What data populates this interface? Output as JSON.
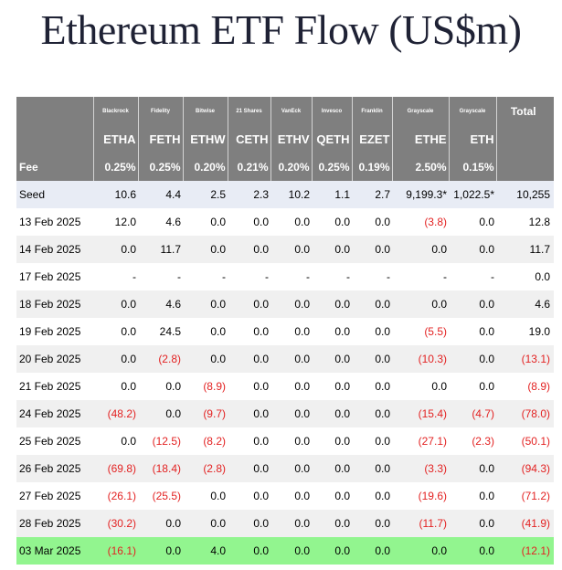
{
  "title": "Ethereum ETF Flow (US$m)",
  "issuers": [
    "Blackrock",
    "Fidelity",
    "Bitwise",
    "21 Shares",
    "VanEck",
    "Invesco",
    "Franklin",
    "Grayscale",
    "Grayscale"
  ],
  "total_label": "Total",
  "tickers": [
    "ETHA",
    "FETH",
    "ETHW",
    "CETH",
    "ETHV",
    "QETH",
    "EZET",
    "ETHE",
    "ETH"
  ],
  "fee_label": "Fee",
  "fees": [
    "0.25%",
    "0.25%",
    "0.20%",
    "0.21%",
    "0.20%",
    "0.25%",
    "0.19%",
    "2.50%",
    "0.15%"
  ],
  "rows": [
    {
      "label": "Seed",
      "values": [
        "10.6",
        "4.4",
        "2.5",
        "2.3",
        "10.2",
        "1.1",
        "2.7",
        "9,199.3*",
        "1,022.5*",
        "10,255"
      ],
      "style": "seed"
    },
    {
      "label": "13 Feb 2025",
      "values": [
        "12.0",
        "4.6",
        "0.0",
        "0.0",
        "0.0",
        "0.0",
        "0.0",
        "(3.8)",
        "0.0",
        "12.8"
      ],
      "style": "plain"
    },
    {
      "label": "14 Feb 2025",
      "values": [
        "0.0",
        "11.7",
        "0.0",
        "0.0",
        "0.0",
        "0.0",
        "0.0",
        "0.0",
        "0.0",
        "11.7"
      ],
      "style": "alt"
    },
    {
      "label": "17 Feb 2025",
      "values": [
        "-",
        "-",
        "-",
        "-",
        "-",
        "-",
        "-",
        "-",
        "-",
        "0.0"
      ],
      "style": "plain"
    },
    {
      "label": "18 Feb 2025",
      "values": [
        "0.0",
        "4.6",
        "0.0",
        "0.0",
        "0.0",
        "0.0",
        "0.0",
        "0.0",
        "0.0",
        "4.6"
      ],
      "style": "alt"
    },
    {
      "label": "19 Feb 2025",
      "values": [
        "0.0",
        "24.5",
        "0.0",
        "0.0",
        "0.0",
        "0.0",
        "0.0",
        "(5.5)",
        "0.0",
        "19.0"
      ],
      "style": "plain"
    },
    {
      "label": "20 Feb 2025",
      "values": [
        "0.0",
        "(2.8)",
        "0.0",
        "0.0",
        "0.0",
        "0.0",
        "0.0",
        "(10.3)",
        "0.0",
        "(13.1)"
      ],
      "style": "alt"
    },
    {
      "label": "21 Feb 2025",
      "values": [
        "0.0",
        "0.0",
        "(8.9)",
        "0.0",
        "0.0",
        "0.0",
        "0.0",
        "0.0",
        "0.0",
        "(8.9)"
      ],
      "style": "plain"
    },
    {
      "label": "24 Feb 2025",
      "values": [
        "(48.2)",
        "0.0",
        "(9.7)",
        "0.0",
        "0.0",
        "0.0",
        "0.0",
        "(15.4)",
        "(4.7)",
        "(78.0)"
      ],
      "style": "alt"
    },
    {
      "label": "25 Feb 2025",
      "values": [
        "0.0",
        "(12.5)",
        "(8.2)",
        "0.0",
        "0.0",
        "0.0",
        "0.0",
        "(27.1)",
        "(2.3)",
        "(50.1)"
      ],
      "style": "plain"
    },
    {
      "label": "26 Feb 2025",
      "values": [
        "(69.8)",
        "(18.4)",
        "(2.8)",
        "0.0",
        "0.0",
        "0.0",
        "0.0",
        "(3.3)",
        "0.0",
        "(94.3)"
      ],
      "style": "alt"
    },
    {
      "label": "27 Feb 2025",
      "values": [
        "(26.1)",
        "(25.5)",
        "0.0",
        "0.0",
        "0.0",
        "0.0",
        "0.0",
        "(19.6)",
        "0.0",
        "(71.2)"
      ],
      "style": "plain"
    },
    {
      "label": "28 Feb 2025",
      "values": [
        "(30.2)",
        "0.0",
        "0.0",
        "0.0",
        "0.0",
        "0.0",
        "0.0",
        "(11.7)",
        "0.0",
        "(41.9)"
      ],
      "style": "alt"
    },
    {
      "label": "03 Mar 2025",
      "values": [
        "(16.1)",
        "0.0",
        "4.0",
        "0.0",
        "0.0",
        "0.0",
        "0.0",
        "0.0",
        "0.0",
        "(12.1)"
      ],
      "style": "green"
    }
  ],
  "colors": {
    "header_bg": "#7f7f7f",
    "header_text": "#ffffff",
    "negative": "#e32222",
    "seed_row": "#e8ecf5",
    "alt_row": "#f0f0f0",
    "latest_row": "#92f58f",
    "title_text": "#1f2235"
  }
}
